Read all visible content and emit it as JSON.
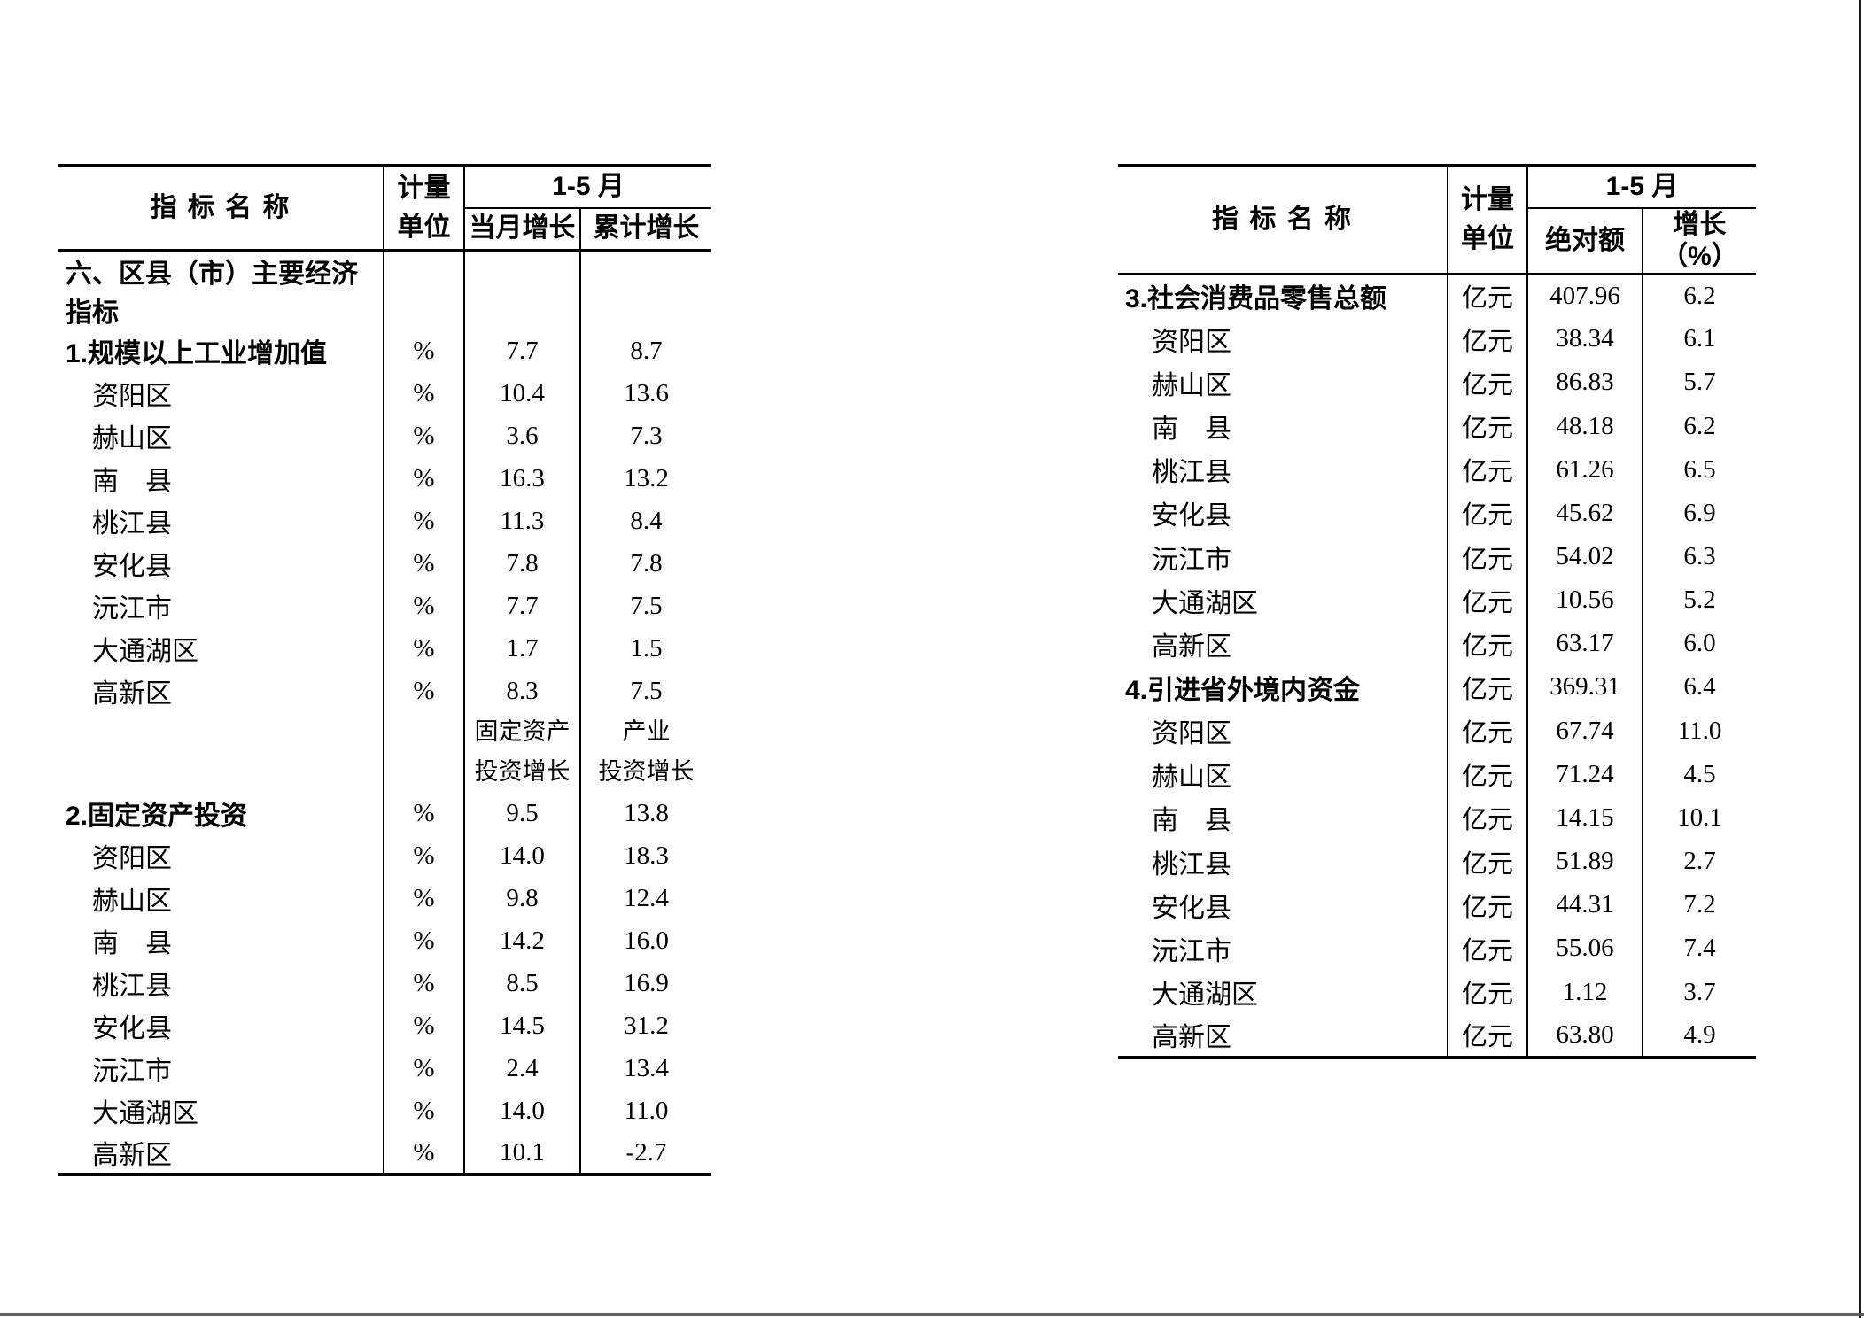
{
  "left_table": {
    "header": {
      "name": "指 标 名 称",
      "unit_line1": "计量",
      "unit_line2": "单位",
      "period": "1-5 月",
      "sub_col1": "当月增长",
      "sub_col2": "累计增长"
    },
    "rows1": [
      {
        "label": "六、区县（市）主要经济指标",
        "unit": "",
        "v1": "",
        "v2": "",
        "style": "section"
      },
      {
        "label": "1.规模以上工业增加值",
        "unit": "%",
        "v1": "7.7",
        "v2": "8.7",
        "style": "section"
      },
      {
        "label": "资阳区",
        "unit": "%",
        "v1": "10.4",
        "v2": "13.6",
        "style": "item"
      },
      {
        "label": "赫山区",
        "unit": "%",
        "v1": "3.6",
        "v2": "7.3",
        "style": "item"
      },
      {
        "label": "南　县",
        "unit": "%",
        "v1": "16.3",
        "v2": "13.2",
        "style": "item"
      },
      {
        "label": "桃江县",
        "unit": "%",
        "v1": "11.3",
        "v2": "8.4",
        "style": "item"
      },
      {
        "label": "安化县",
        "unit": "%",
        "v1": "7.8",
        "v2": "7.8",
        "style": "item"
      },
      {
        "label": "沅江市",
        "unit": "%",
        "v1": "7.7",
        "v2": "7.5",
        "style": "item"
      },
      {
        "label": "大通湖区",
        "unit": "%",
        "v1": "1.7",
        "v2": "1.5",
        "style": "item"
      },
      {
        "label": "高新区",
        "unit": "%",
        "v1": "8.3",
        "v2": "7.5",
        "style": "item"
      }
    ],
    "mid_header": {
      "col1_line1": "固定资产",
      "col1_line2": "投资增长",
      "col2_line1": "产业",
      "col2_line2": "投资增长"
    },
    "rows2": [
      {
        "label": "2.固定资产投资",
        "unit": "%",
        "v1": "9.5",
        "v2": "13.8",
        "style": "section"
      },
      {
        "label": "资阳区",
        "unit": "%",
        "v1": "14.0",
        "v2": "18.3",
        "style": "item"
      },
      {
        "label": "赫山区",
        "unit": "%",
        "v1": "9.8",
        "v2": "12.4",
        "style": "item"
      },
      {
        "label": "南　县",
        "unit": "%",
        "v1": "14.2",
        "v2": "16.0",
        "style": "item"
      },
      {
        "label": "桃江县",
        "unit": "%",
        "v1": "8.5",
        "v2": "16.9",
        "style": "item"
      },
      {
        "label": "安化县",
        "unit": "%",
        "v1": "14.5",
        "v2": "31.2",
        "style": "item"
      },
      {
        "label": "沅江市",
        "unit": "%",
        "v1": "2.4",
        "v2": "13.4",
        "style": "item"
      },
      {
        "label": "大通湖区",
        "unit": "%",
        "v1": "14.0",
        "v2": "11.0",
        "style": "item"
      },
      {
        "label": "高新区",
        "unit": "%",
        "v1": "10.1",
        "v2": "-2.7",
        "style": "item"
      }
    ]
  },
  "right_table": {
    "header": {
      "name": "指 标 名 称",
      "unit_line1": "计量",
      "unit_line2": "单位",
      "period": "1-5 月",
      "sub_col1": "绝对额",
      "sub_col2": "增长（%）"
    },
    "rows": [
      {
        "label": "3.社会消费品零售总额",
        "unit": "亿元",
        "v1": "407.96",
        "v2": "6.2",
        "style": "section"
      },
      {
        "label": "资阳区",
        "unit": "亿元",
        "v1": "38.34",
        "v2": "6.1",
        "style": "item"
      },
      {
        "label": "赫山区",
        "unit": "亿元",
        "v1": "86.83",
        "v2": "5.7",
        "style": "item"
      },
      {
        "label": "南　县",
        "unit": "亿元",
        "v1": "48.18",
        "v2": "6.2",
        "style": "item"
      },
      {
        "label": "桃江县",
        "unit": "亿元",
        "v1": "61.26",
        "v2": "6.5",
        "style": "item"
      },
      {
        "label": "安化县",
        "unit": "亿元",
        "v1": "45.62",
        "v2": "6.9",
        "style": "item"
      },
      {
        "label": "沅江市",
        "unit": "亿元",
        "v1": "54.02",
        "v2": "6.3",
        "style": "item"
      },
      {
        "label": "大通湖区",
        "unit": "亿元",
        "v1": "10.56",
        "v2": "5.2",
        "style": "item"
      },
      {
        "label": "高新区",
        "unit": "亿元",
        "v1": "63.17",
        "v2": "6.0",
        "style": "item"
      },
      {
        "label": "4.引进省外境内资金",
        "unit": "亿元",
        "v1": "369.31",
        "v2": "6.4",
        "style": "section"
      },
      {
        "label": "资阳区",
        "unit": "亿元",
        "v1": "67.74",
        "v2": "11.0",
        "style": "item"
      },
      {
        "label": "赫山区",
        "unit": "亿元",
        "v1": "71.24",
        "v2": "4.5",
        "style": "item"
      },
      {
        "label": "南　县",
        "unit": "亿元",
        "v1": "14.15",
        "v2": "10.1",
        "style": "item"
      },
      {
        "label": "桃江县",
        "unit": "亿元",
        "v1": "51.89",
        "v2": "2.7",
        "style": "item"
      },
      {
        "label": "安化县",
        "unit": "亿元",
        "v1": "44.31",
        "v2": "7.2",
        "style": "item"
      },
      {
        "label": "沅江市",
        "unit": "亿元",
        "v1": "55.06",
        "v2": "7.4",
        "style": "item"
      },
      {
        "label": "大通湖区",
        "unit": "亿元",
        "v1": "1.12",
        "v2": "3.7",
        "style": "item"
      },
      {
        "label": "高新区",
        "unit": "亿元",
        "v1": "63.80",
        "v2": "4.9",
        "style": "item"
      }
    ]
  }
}
